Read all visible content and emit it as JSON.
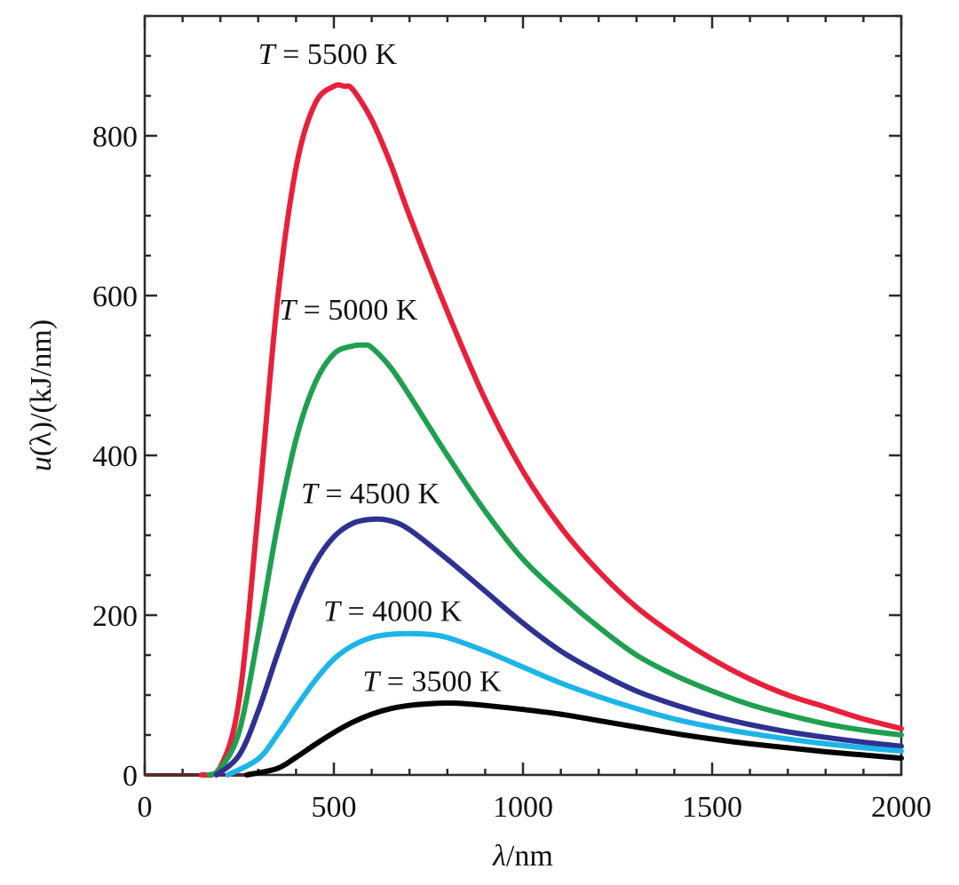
{
  "chart_data": {
    "type": "line",
    "title": "",
    "xlabel_var": "λ",
    "xlabel_unit": "/nm",
    "ylabel_var": "u",
    "ylabel_rest": "(λ)/(kJ/nm)",
    "xlim": [
      0,
      2000
    ],
    "ylim": [
      0,
      950
    ],
    "xticks": [
      0,
      500,
      1000,
      1500,
      2000
    ],
    "xtick_labels": [
      "0",
      "500",
      "1000",
      "1500",
      "2000"
    ],
    "yticks": [
      0,
      200,
      400,
      600,
      800
    ],
    "ytick_labels": [
      "0",
      "200",
      "400",
      "600",
      "800"
    ],
    "x_minor_step": 100,
    "y_minor_step": 50,
    "grid": false,
    "label_var": "T",
    "label_eq": " = ",
    "series": [
      {
        "name": "T = 5500 K",
        "label_value": "5500 K",
        "color": "#e8203a",
        "label_at": [
          300,
          890
        ],
        "x": [
          150,
          200,
          250,
          300,
          350,
          400,
          450,
          500,
          527,
          550,
          600,
          650,
          700,
          800,
          900,
          1000,
          1100,
          1200,
          1300,
          1400,
          1500,
          1600,
          1700,
          1800,
          1900,
          2000
        ],
        "y": [
          0,
          10,
          95,
          330,
          590,
          760,
          840,
          862,
          862,
          858,
          820,
          765,
          700,
          580,
          470,
          380,
          310,
          255,
          210,
          175,
          145,
          120,
          100,
          85,
          70,
          58
        ]
      },
      {
        "name": "T = 5000 K",
        "label_value": "5000 K",
        "color": "#1ea050",
        "label_at": [
          355,
          570
        ],
        "x": [
          170,
          200,
          250,
          300,
          350,
          400,
          450,
          500,
          550,
          580,
          600,
          650,
          700,
          800,
          900,
          1000,
          1100,
          1200,
          1300,
          1400,
          1500,
          1600,
          1700,
          1800,
          1900,
          2000
        ],
        "y": [
          0,
          8,
          55,
          175,
          310,
          420,
          490,
          527,
          537,
          538,
          535,
          510,
          475,
          400,
          330,
          270,
          225,
          185,
          150,
          125,
          105,
          88,
          75,
          64,
          56,
          50
        ]
      },
      {
        "name": "T = 4500 K",
        "label_value": "4500 K",
        "color": "#2e3192",
        "label_at": [
          413,
          340
        ],
        "x": [
          190,
          250,
          300,
          350,
          400,
          450,
          500,
          550,
          600,
          650,
          700,
          800,
          900,
          1000,
          1100,
          1200,
          1300,
          1400,
          1500,
          1600,
          1700,
          1800,
          1900,
          2000
        ],
        "y": [
          0,
          25,
          80,
          150,
          215,
          265,
          298,
          315,
          320,
          318,
          307,
          270,
          230,
          190,
          155,
          128,
          105,
          88,
          74,
          63,
          54,
          47,
          41,
          36
        ]
      },
      {
        "name": "T = 4000 K",
        "label_value": "4000 K",
        "color": "#1db4e8",
        "label_at": [
          472,
          193
        ],
        "x": [
          220,
          300,
          350,
          400,
          450,
          500,
          550,
          600,
          650,
          700,
          750,
          800,
          900,
          1000,
          1100,
          1200,
          1300,
          1400,
          1500,
          1600,
          1700,
          1800,
          1900,
          2000
        ],
        "y": [
          0,
          20,
          50,
          85,
          118,
          145,
          162,
          172,
          176,
          177,
          176,
          172,
          155,
          135,
          115,
          98,
          83,
          70,
          60,
          52,
          45,
          39,
          34,
          30
        ]
      },
      {
        "name": "T = 3500 K",
        "label_value": "3500 K",
        "color": "#000000",
        "label_at": [
          576,
          105
        ],
        "x": [
          270,
          350,
          400,
          450,
          500,
          550,
          600,
          650,
          700,
          750,
          800,
          850,
          900,
          1000,
          1100,
          1200,
          1300,
          1400,
          1500,
          1600,
          1700,
          1800,
          1900,
          2000
        ],
        "y": [
          0,
          8,
          22,
          38,
          53,
          66,
          76,
          83,
          87,
          89,
          90,
          89,
          87,
          82,
          76,
          68,
          60,
          52,
          45,
          39,
          34,
          29,
          25,
          21
        ]
      }
    ]
  }
}
